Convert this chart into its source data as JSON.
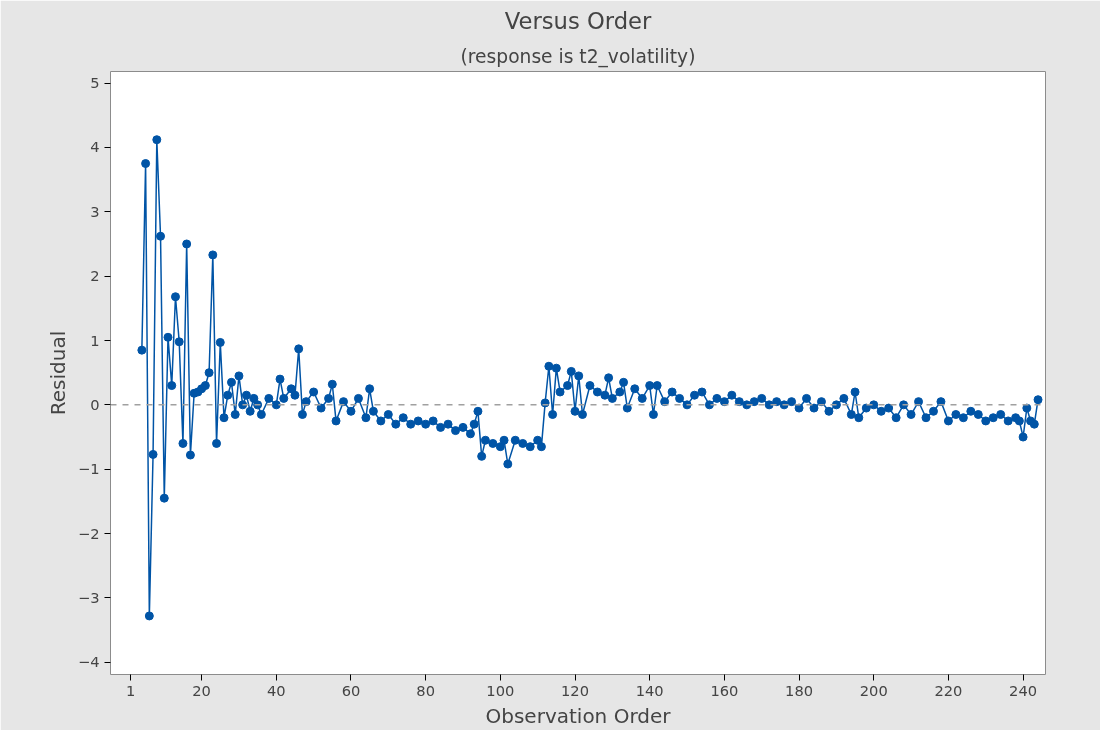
{
  "chart_data": {
    "type": "line",
    "title": "Versus Order",
    "subtitle": "(response is t2_volatility)",
    "xlabel": "Observation Order",
    "ylabel": "Residual",
    "x": [
      4,
      5,
      6,
      7,
      8,
      9,
      10,
      11,
      12,
      13,
      14,
      15,
      16,
      17,
      18,
      19,
      20,
      21,
      22,
      23,
      24,
      25,
      26,
      27,
      28,
      29,
      30,
      31,
      32,
      33,
      34,
      35,
      36,
      38,
      40,
      41,
      42,
      44,
      45,
      46,
      47,
      48,
      50,
      52,
      54,
      55,
      56,
      58,
      60,
      62,
      64,
      65,
      66,
      68,
      70,
      72,
      74,
      76,
      78,
      80,
      82,
      84,
      86,
      88,
      90,
      92,
      93,
      94,
      95,
      96,
      98,
      100,
      101,
      102,
      104,
      106,
      108,
      110,
      111,
      112,
      113,
      114,
      115,
      116,
      118,
      119,
      120,
      121,
      122,
      124,
      126,
      128,
      129,
      130,
      132,
      133,
      134,
      136,
      138,
      140,
      141,
      142,
      144,
      146,
      148,
      150,
      152,
      154,
      156,
      158,
      160,
      162,
      164,
      166,
      168,
      170,
      172,
      174,
      176,
      178,
      180,
      182,
      184,
      186,
      188,
      190,
      192,
      194,
      195,
      196,
      198,
      200,
      202,
      204,
      206,
      208,
      210,
      212,
      214,
      216,
      218,
      220,
      222,
      224,
      226,
      228,
      230,
      232,
      234,
      236,
      238,
      239,
      240,
      241,
      242,
      243,
      244
    ],
    "series": [
      {
        "color": "#0054a6",
        "values": [
          0.85,
          3.75,
          -3.28,
          -0.77,
          4.12,
          2.62,
          -1.45,
          1.05,
          0.3,
          1.68,
          0.98,
          -0.6,
          2.5,
          -0.78,
          0.18,
          0.2,
          0.25,
          0.3,
          0.5,
          2.33,
          -0.6,
          0.97,
          -0.2,
          0.15,
          0.35,
          -0.15,
          0.45,
          0.0,
          0.15,
          -0.1,
          0.1,
          0.0,
          -0.15,
          0.1,
          0.0,
          0.4,
          0.1,
          0.25,
          0.15,
          0.87,
          -0.15,
          0.05,
          0.2,
          -0.05,
          0.1,
          0.32,
          -0.25,
          0.05,
          -0.1,
          0.1,
          -0.2,
          0.25,
          -0.1,
          -0.25,
          -0.15,
          -0.3,
          -0.2,
          -0.3,
          -0.25,
          -0.3,
          -0.25,
          -0.35,
          -0.3,
          -0.4,
          -0.35,
          -0.45,
          -0.3,
          -0.1,
          -0.8,
          -0.55,
          -0.6,
          -0.65,
          -0.55,
          -0.92,
          -0.55,
          -0.6,
          -0.65,
          -0.55,
          -0.65,
          0.03,
          0.6,
          -0.15,
          0.57,
          0.2,
          0.3,
          0.52,
          -0.1,
          0.45,
          -0.15,
          0.3,
          0.2,
          0.15,
          0.42,
          0.1,
          0.2,
          0.35,
          -0.05,
          0.25,
          0.1,
          0.3,
          -0.15,
          0.3,
          0.05,
          0.2,
          0.1,
          0.0,
          0.15,
          0.2,
          0.0,
          0.1,
          0.05,
          0.15,
          0.05,
          0.0,
          0.05,
          0.1,
          0.0,
          0.05,
          0.0,
          0.05,
          -0.05,
          0.1,
          -0.05,
          0.05,
          -0.1,
          0.0,
          0.1,
          -0.15,
          0.2,
          -0.2,
          -0.05,
          0.0,
          -0.1,
          -0.05,
          -0.2,
          0.0,
          -0.15,
          0.05,
          -0.2,
          -0.1,
          0.05,
          -0.25,
          -0.15,
          -0.2,
          -0.1,
          -0.15,
          -0.25,
          -0.2,
          -0.15,
          -0.25,
          -0.2,
          -0.25,
          -0.5,
          -0.05,
          -0.25,
          -0.3,
          0.08
        ]
      }
    ],
    "xlim": [
      -4.4,
      246
    ],
    "ylim": [
      -4.19,
      5.18
    ],
    "xticks": [
      1,
      20,
      40,
      60,
      80,
      100,
      120,
      140,
      160,
      180,
      200,
      220,
      240
    ],
    "yticks": [
      -4,
      -3,
      -2,
      -1,
      0,
      1,
      2,
      3,
      4,
      5
    ],
    "ref_lines": [
      {
        "axis": "y",
        "value": 0,
        "color": "#a0a0a0",
        "line_style": "dashed"
      }
    ],
    "marker": "circle",
    "grid": false
  }
}
